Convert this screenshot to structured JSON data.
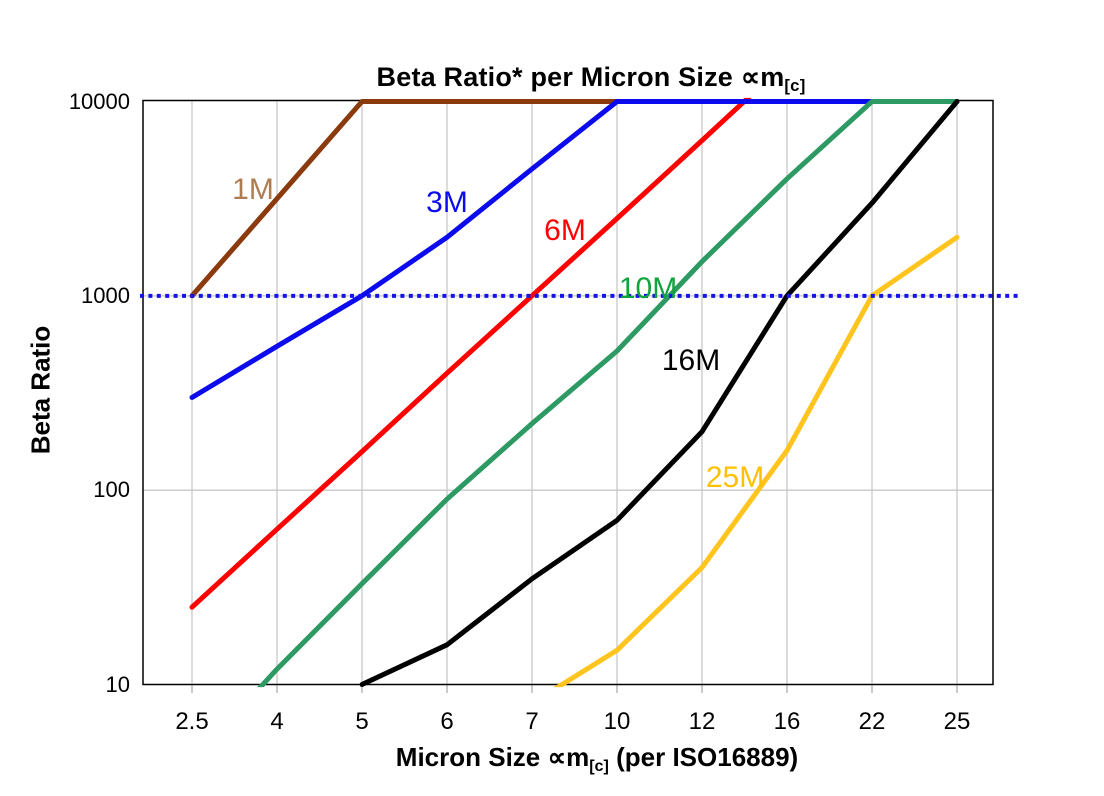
{
  "page": {
    "background": "#FFFFFF"
  },
  "chart_data": {
    "type": "line",
    "title": {
      "pre": "Beta Ratio* per Micron Size ∝m",
      "sub": "[c]"
    },
    "x_axis": {
      "title_pre": "Micron Size ∝m",
      "title_sub": "[c]",
      "title_post": " (per ISO16889)",
      "tick_labels": [
        "2.5",
        "4",
        "5",
        "6",
        "7",
        "10",
        "12",
        "16",
        "22",
        "25"
      ]
    },
    "y_axis": {
      "title": "Beta Ratio",
      "scale": "log",
      "range": [
        10,
        10000
      ],
      "ticks": [
        {
          "value": 10000,
          "label": "10000"
        },
        {
          "value": 1000,
          "label": "1000"
        },
        {
          "value": 100,
          "label": "100"
        },
        {
          "value": 10,
          "label": "10"
        }
      ]
    },
    "categories": [
      2.5,
      4,
      5,
      6,
      7,
      10,
      12,
      16,
      22,
      25
    ],
    "series": [
      {
        "name": "1M",
        "color": "#8B3A0E",
        "label_text": "1M",
        "label_color": "#AD7C50",
        "values": [
          1000,
          3162,
          10000,
          10000,
          10000,
          10000,
          10000,
          10000,
          10000,
          10000
        ]
      },
      {
        "name": "3M",
        "color": "#0B0BEE",
        "label_text": "3M",
        "label_color": "#0B0BEE",
        "values": [
          300,
          550,
          1000,
          2000,
          4500,
          10000,
          10000,
          10000,
          10000,
          10000
        ]
      },
      {
        "name": "6M",
        "color": "#FE0000",
        "label_text": "6M",
        "label_color": "#FE0000",
        "values": [
          25,
          63,
          158,
          400,
          1000,
          2500,
          6300,
          16000,
          16000,
          16000
        ]
      },
      {
        "name": "10M",
        "color": "#2E9A63",
        "label_text": "10M",
        "label_color": "#0FA53C",
        "values": [
          4,
          12,
          33,
          90,
          220,
          520,
          1500,
          4000,
          10000,
          10000
        ]
      },
      {
        "name": "16M",
        "color": "#000000",
        "label_text": "16M",
        "label_color": "#000000",
        "values": [
          null,
          null,
          10,
          16,
          35,
          70,
          200,
          1000,
          3000,
          10000
        ]
      },
      {
        "name": "25M",
        "color": "#FFC41E",
        "label_text": "25M",
        "label_color": "#FFC000",
        "values": [
          null,
          null,
          null,
          null,
          8,
          15,
          40,
          160,
          1000,
          2000
        ]
      }
    ],
    "reference_line": {
      "value": 1000,
      "color": "#1414E8",
      "style": "dotted"
    },
    "draw_order": [
      "1M",
      "6M",
      "3M",
      "reference",
      "10M",
      "16M",
      "25M"
    ],
    "grid": true,
    "legend_position": "inline-labels",
    "notes": "Log y-axis; series values beyond the 10-10000 axis range are clipped at the plot edges."
  }
}
